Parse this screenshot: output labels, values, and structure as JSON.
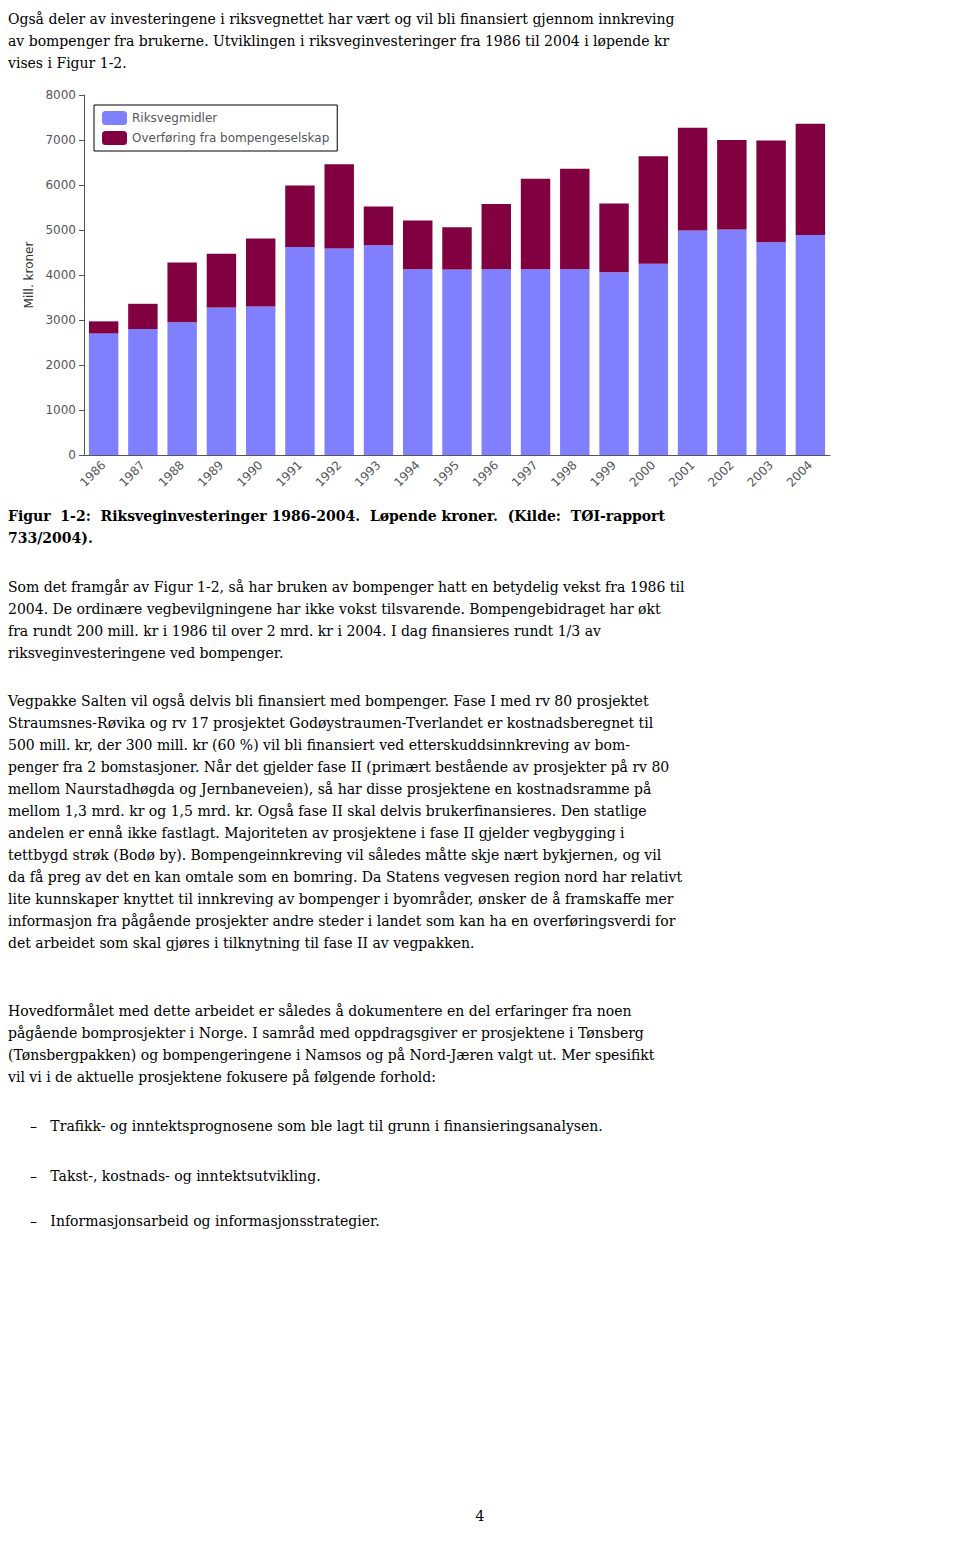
{
  "chart_data": {
    "type": "bar",
    "stacked": true,
    "categories": [
      "1986",
      "1987",
      "1988",
      "1989",
      "1990",
      "1991",
      "1992",
      "1993",
      "1994",
      "1995",
      "1996",
      "1997",
      "1998",
      "1999",
      "2000",
      "2001",
      "2002",
      "2003",
      "2004"
    ],
    "series": [
      {
        "name": "Riksvegmidler",
        "color": "#8080FF",
        "values": [
          2700,
          2800,
          2950,
          3280,
          3300,
          4620,
          4590,
          4660,
          4130,
          4120,
          4130,
          4130,
          4130,
          4060,
          4250,
          4990,
          5010,
          4730,
          4890
        ]
      },
      {
        "name": "Overføring fra bompengeselskap",
        "color": "#800040",
        "values": [
          270,
          560,
          1330,
          1190,
          1510,
          1370,
          1870,
          860,
          1080,
          940,
          1450,
          2010,
          2230,
          1530,
          2390,
          2280,
          1990,
          2260,
          2470
        ]
      }
    ],
    "ylabel": "Mill. kroner",
    "ylim": [
      0,
      8000
    ],
    "yticks": [
      0,
      1000,
      2000,
      3000,
      4000,
      5000,
      6000,
      7000,
      8000
    ],
    "grid": false,
    "legend": "upper left",
    "annotations": [
      "Også deler av investeringene i riksvegnettet har vært og vil bli finansiert gjennom innkreving\nav bompenger fra brukerne. Utviklingen i riksveginvesteringer fra 1986 til 2004 i løpende kr\nvises i Figur 1-2.",
      "Figur  1-2:  Riksveginvesteringer 1986-2004.  Løpende kroner.  (Kilde:  TØI-rapport\n733/2004).",
      "Som det framgår av Figur 1-2, så har bruken av bompenger hatt en betydelig vekst fra 1986 til\n2004. De ordinære vegbevilgningene har ikke vokst tilsvarende. Bompengebidraget har økt\nfra rundt 200 mill. kr i 1986 til over 2 mrd. kr i 2004. I dag finansieres rundt 1/3 av\nriksveginvesteringene ved bompenger.",
      "Vegpakke Salten vil også delvis bli finansiert med bompenger. Fase I med rv 80 prosjektet\nStraumsnes-Røvika og rv 17 prosjektet Godøystraumen-Tverlandet er kostnadsberegnet til\n500 mill. kr, der 300 mill. kr (60 %) vil bli finansiert ved etterskuddsinnkreving av bom-\npenger fra 2 bomstasjoner. Når det gjelder fase II (primært bestående av prosjekter på rv 80\nmellom Naurstadhøgda og Jernbaneveien), så har disse prosjektene en kostnadsramme på\nmellom 1,3 mrd. kr og 1,5 mrd. kr. Også fase II skal delvis brukerfinansieres. Den statlige\nandelen er ennå ikke fastlagt. Majoriteten av prosjektene i fase II gjelder vegbygging i\ntettbygd strøk (Bodø by). Bompengeinnkreving vil således måtte skje nært bykjernen, og vil\nda få preg av det en kan omtale som en bomring. Da Statens vegvesen region nord har relativt\nlite kunnskaper knyttet til innkreving av bompenger i byområder, ønsker de å framskaffe mer\ninformasjon fra pågående prosjekter andre steder i landet som kan ha en overføringsverdi for\ndet arbeidet som skal gjøres i tilknytning til fase II av vegpakken.",
      "Hovedformålet med dette arbeidet er således å dokumentere en del erfaringer fra noen\npågående bomprosjekter i Norge. I samråd med oppdragsgiver er prosjektene i Tønsberg\n(Tønsbergpakken) og bompengeringene i Namsos og på Nord-Jæren valgt ut. Mer spesifikt\nvil vi i de aktuelle prosjektene fokusere på følgende forhold:",
      "–   Trafikk- og inntektsprognosene som ble lagt til grunn i finansieringsanalysen.",
      "–   Takst-, kostnads- og inntektsutvikling.",
      "–   Informasjonsarbeid og informasjonsstrategier.",
      "4"
    ]
  }
}
